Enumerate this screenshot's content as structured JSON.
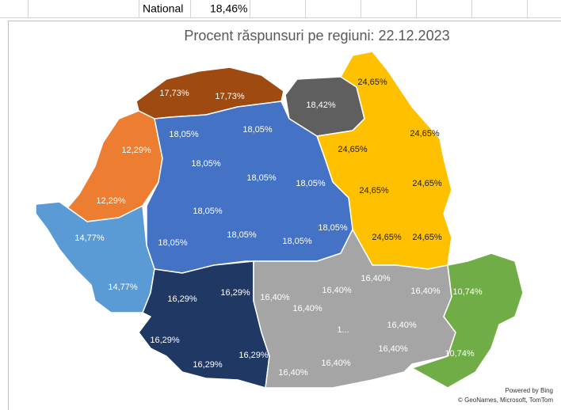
{
  "cell": {
    "name": "National",
    "value": "18,46%"
  },
  "map": {
    "title": "Procent răspunsuri pe regiuni: 22.12.2023",
    "groups": [
      {
        "color": "#9e4a10",
        "labels": [
          "17,73%",
          "17,73%"
        ]
      },
      {
        "color": "#5f5f5f",
        "labels": [
          "18,42%"
        ]
      },
      {
        "color": "#ffc000",
        "labels": [
          "24,65%",
          "24,65%",
          "24,65%",
          "24,65%",
          "24,65%",
          "24,65%",
          "24,65%"
        ]
      },
      {
        "color": "#ed7d31",
        "labels": [
          "12,29%",
          "12,29%"
        ]
      },
      {
        "color": "#4472c4",
        "labels": [
          "18,05%",
          "18,05%",
          "18,05%",
          "18,05%",
          "18,05%",
          "18,05%",
          "18,05%",
          "18,05%",
          "18,05%",
          "18,05%"
        ]
      },
      {
        "color": "#5b9bd5",
        "labels": [
          "14,77%",
          "14,77%"
        ]
      },
      {
        "color": "#203864",
        "labels": [
          "16,29%",
          "16,29%",
          "16,29%",
          "16,29%",
          "16,29%"
        ]
      },
      {
        "color": "#a5a5a5",
        "labels": [
          "16,40%",
          "16,40%",
          "16,40%",
          "16,40%",
          "16,40%",
          "16,40%",
          "16,40%",
          "16,40%",
          "16,40%",
          "1..."
        ]
      },
      {
        "color": "#70ad47",
        "labels": [
          "10,74%",
          "10,74%"
        ]
      }
    ],
    "credit": "Powered by Bing",
    "attribution": "© GeoNames, Microsoft, TomTom"
  }
}
